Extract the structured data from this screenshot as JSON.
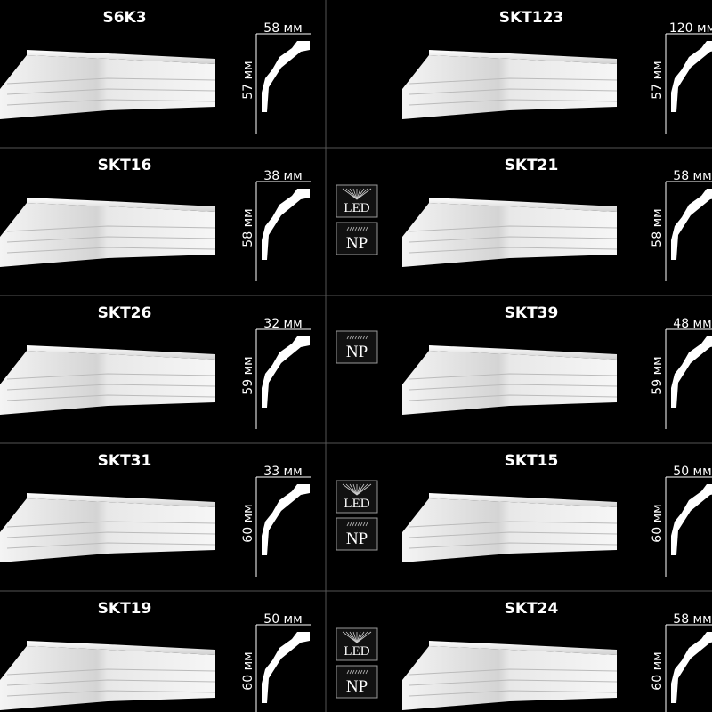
{
  "items": [
    {
      "name": "S6K3",
      "width": "58 мм",
      "height": "57 мм",
      "badges": []
    },
    {
      "name": "SKT123",
      "width": "120 мм",
      "height": "57 мм",
      "badges": []
    },
    {
      "name": "SKT16",
      "width": "38 мм",
      "height": "58 мм",
      "badges": []
    },
    {
      "name": "SKT21",
      "width": "58 мм",
      "height": "58 мм",
      "badges": [
        "LED",
        "NP"
      ]
    },
    {
      "name": "SKT26",
      "width": "32 мм",
      "height": "59 мм",
      "badges": []
    },
    {
      "name": "SKT39",
      "width": "48 мм",
      "height": "59 мм",
      "badges": [
        "NP"
      ]
    },
    {
      "name": "SKT31",
      "width": "33 мм",
      "height": "60 мм",
      "badges": []
    },
    {
      "name": "SKT15",
      "width": "50 мм",
      "height": "60 мм",
      "badges": [
        "LED",
        "NP"
      ]
    },
    {
      "name": "SKT19",
      "width": "50 мм",
      "height": "60 мм",
      "badges": []
    },
    {
      "name": "SKT24",
      "width": "58 мм",
      "height": "60 мм",
      "badges": [
        "LED",
        "NP"
      ]
    }
  ]
}
